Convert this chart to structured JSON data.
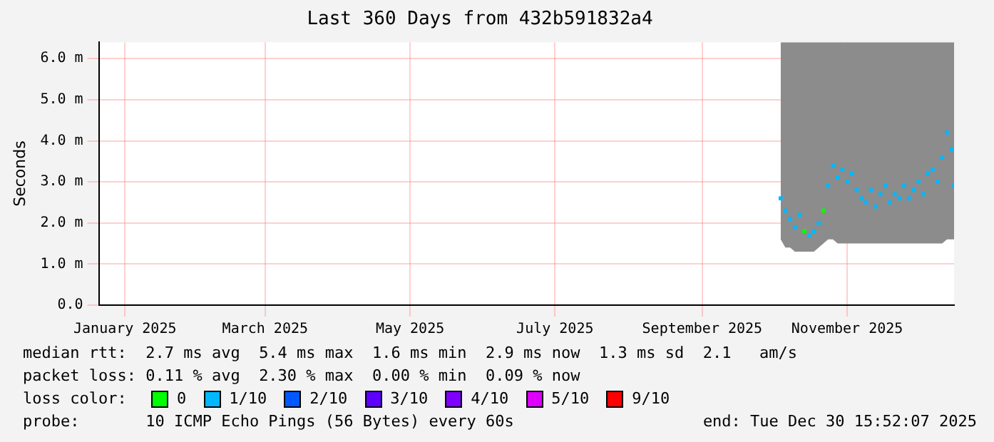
{
  "chart_data": {
    "type": "scatter",
    "title": "Last 360 Days from 432b591832a4",
    "ylabel": "Seconds",
    "x": [
      "2025-10-18",
      "2025-10-20",
      "2025-10-22",
      "2025-10-24",
      "2025-10-26",
      "2025-10-28",
      "2025-10-30",
      "2025-11-01",
      "2025-11-03",
      "2025-11-05",
      "2025-11-07",
      "2025-11-09",
      "2025-11-11",
      "2025-11-13",
      "2025-11-15",
      "2025-11-17",
      "2025-11-19",
      "2025-11-21",
      "2025-11-23",
      "2025-11-25",
      "2025-11-27",
      "2025-11-29",
      "2025-12-01",
      "2025-12-03",
      "2025-12-05",
      "2025-12-07",
      "2025-12-09",
      "2025-12-11",
      "2025-12-13",
      "2025-12-15",
      "2025-12-17",
      "2025-12-19",
      "2025-12-21",
      "2025-12-23",
      "2025-12-25",
      "2025-12-27",
      "2025-12-29",
      "2025-12-30"
    ],
    "series": [
      {
        "name": "0",
        "color": "#00ff00",
        "values": [
          null,
          null,
          null,
          null,
          null,
          1.8,
          null,
          null,
          null,
          2.3,
          null,
          null,
          null,
          null,
          null,
          null,
          null,
          null,
          null,
          null,
          null,
          null,
          null,
          null,
          null,
          null,
          null,
          null,
          null,
          null,
          null,
          null,
          null,
          null,
          null,
          null,
          null,
          null
        ]
      },
      {
        "name": "1/10",
        "color": "#00b8ff",
        "values": [
          2.6,
          2.3,
          2.1,
          1.9,
          2.2,
          null,
          1.7,
          1.8,
          2.0,
          null,
          2.9,
          3.4,
          3.1,
          3.3,
          3.0,
          3.2,
          2.8,
          2.6,
          2.5,
          2.8,
          2.4,
          2.7,
          2.9,
          2.5,
          2.7,
          2.6,
          2.9,
          2.6,
          2.8,
          3.0,
          2.7,
          3.2,
          3.3,
          3.0,
          3.6,
          4.2,
          3.8,
          2.9
        ],
        "lower": [
          1.6,
          1.4,
          1.4,
          1.3,
          1.3,
          1.3,
          1.3,
          1.3,
          1.4,
          1.5,
          1.6,
          1.6,
          1.5,
          1.5,
          1.5,
          1.5,
          1.5,
          1.5,
          1.5,
          1.5,
          1.5,
          1.5,
          1.5,
          1.5,
          1.5,
          1.5,
          1.5,
          1.5,
          1.5,
          1.5,
          1.5,
          1.5,
          1.5,
          1.5,
          1.5,
          1.6,
          1.6,
          1.6
        ],
        "upper": [
          6.4,
          6.4,
          6.4,
          6.4,
          6.4,
          6.4,
          6.4,
          6.4,
          6.4,
          6.4,
          6.4,
          6.4,
          6.4,
          6.4,
          6.4,
          6.4,
          6.4,
          6.4,
          6.4,
          6.4,
          6.4,
          6.4,
          6.4,
          6.4,
          6.4,
          6.4,
          6.4,
          6.4,
          6.4,
          6.4,
          6.4,
          6.4,
          6.4,
          6.4,
          6.4,
          6.4,
          6.4,
          6.4
        ]
      },
      {
        "name": "2/10",
        "color": "#0059ff",
        "values": [
          null,
          null,
          null,
          null,
          null,
          null,
          null,
          null,
          null,
          null,
          null,
          null,
          null,
          null,
          null,
          null,
          null,
          null,
          null,
          null,
          null,
          null,
          null,
          null,
          null,
          null,
          null,
          null,
          null,
          null,
          null,
          null,
          null,
          null,
          null,
          null,
          null,
          null
        ]
      },
      {
        "name": "3/10",
        "color": "#5e00ff",
        "values": [
          null,
          null,
          null,
          null,
          null,
          null,
          null,
          null,
          null,
          null,
          null,
          null,
          null,
          null,
          null,
          null,
          null,
          null,
          null,
          null,
          null,
          null,
          null,
          null,
          null,
          null,
          null,
          null,
          null,
          null,
          null,
          null,
          null,
          null,
          null,
          null,
          null,
          null
        ]
      },
      {
        "name": "4/10",
        "color": "#7e00ff",
        "values": [
          null,
          null,
          null,
          null,
          null,
          null,
          null,
          null,
          null,
          null,
          null,
          null,
          null,
          null,
          null,
          null,
          null,
          null,
          null,
          null,
          null,
          null,
          null,
          null,
          null,
          null,
          null,
          null,
          null,
          null,
          null,
          null,
          null,
          null,
          null,
          null,
          null,
          null
        ]
      },
      {
        "name": "5/10",
        "color": "#dd00ff",
        "values": [
          null,
          null,
          null,
          null,
          null,
          null,
          null,
          null,
          null,
          null,
          null,
          null,
          null,
          null,
          null,
          null,
          null,
          null,
          null,
          null,
          null,
          null,
          null,
          null,
          null,
          null,
          null,
          null,
          null,
          null,
          null,
          null,
          null,
          null,
          null,
          null,
          null,
          null
        ]
      },
      {
        "name": "9/10",
        "color": "#ff0000",
        "values": [
          null,
          null,
          null,
          null,
          null,
          null,
          null,
          null,
          null,
          null,
          null,
          null,
          null,
          null,
          null,
          null,
          null,
          null,
          null,
          null,
          null,
          null,
          null,
          null,
          null,
          null,
          null,
          null,
          null,
          null,
          null,
          null,
          null,
          null,
          null,
          null,
          null,
          null
        ]
      }
    ],
    "xlim": [
      "2025-01-04",
      "2025-12-30"
    ],
    "xticks": [
      {
        "value": "2025-01-15",
        "label": "January 2025"
      },
      {
        "value": "2025-03-15",
        "label": "March 2025"
      },
      {
        "value": "2025-05-15",
        "label": "May 2025"
      },
      {
        "value": "2025-07-15",
        "label": "July 2025"
      },
      {
        "value": "2025-09-15",
        "label": "September 2025"
      },
      {
        "value": "2025-11-15",
        "label": "November 2025"
      }
    ],
    "ylim": [
      0,
      6.4
    ],
    "yticks": [
      {
        "value": 0,
        "label": "0.0"
      },
      {
        "value": 1,
        "label": "1.0 m"
      },
      {
        "value": 2,
        "label": "2.0 m"
      },
      {
        "value": 3,
        "label": "3.0 m"
      },
      {
        "value": 4,
        "label": "4.0 m"
      },
      {
        "value": 5,
        "label": "5.0 m"
      },
      {
        "value": 6,
        "label": "6.0 m"
      }
    ],
    "grid": true,
    "marker": "square",
    "legend": "bottom",
    "legend_title": "loss color:",
    "annotations": [
      "median rtt:  2.7 ms avg  5.4 ms max  1.6 ms min  2.9 ms now  1.3 ms sd  2.1   am/s",
      "packet loss: 0.11 % avg  2.30 % max  0.00 % min  0.09 % now",
      "probe:       10 ICMP Echo Pings (56 Bytes) every 60s",
      "end: Tue Dec 30 15:52:07 2025"
    ]
  }
}
